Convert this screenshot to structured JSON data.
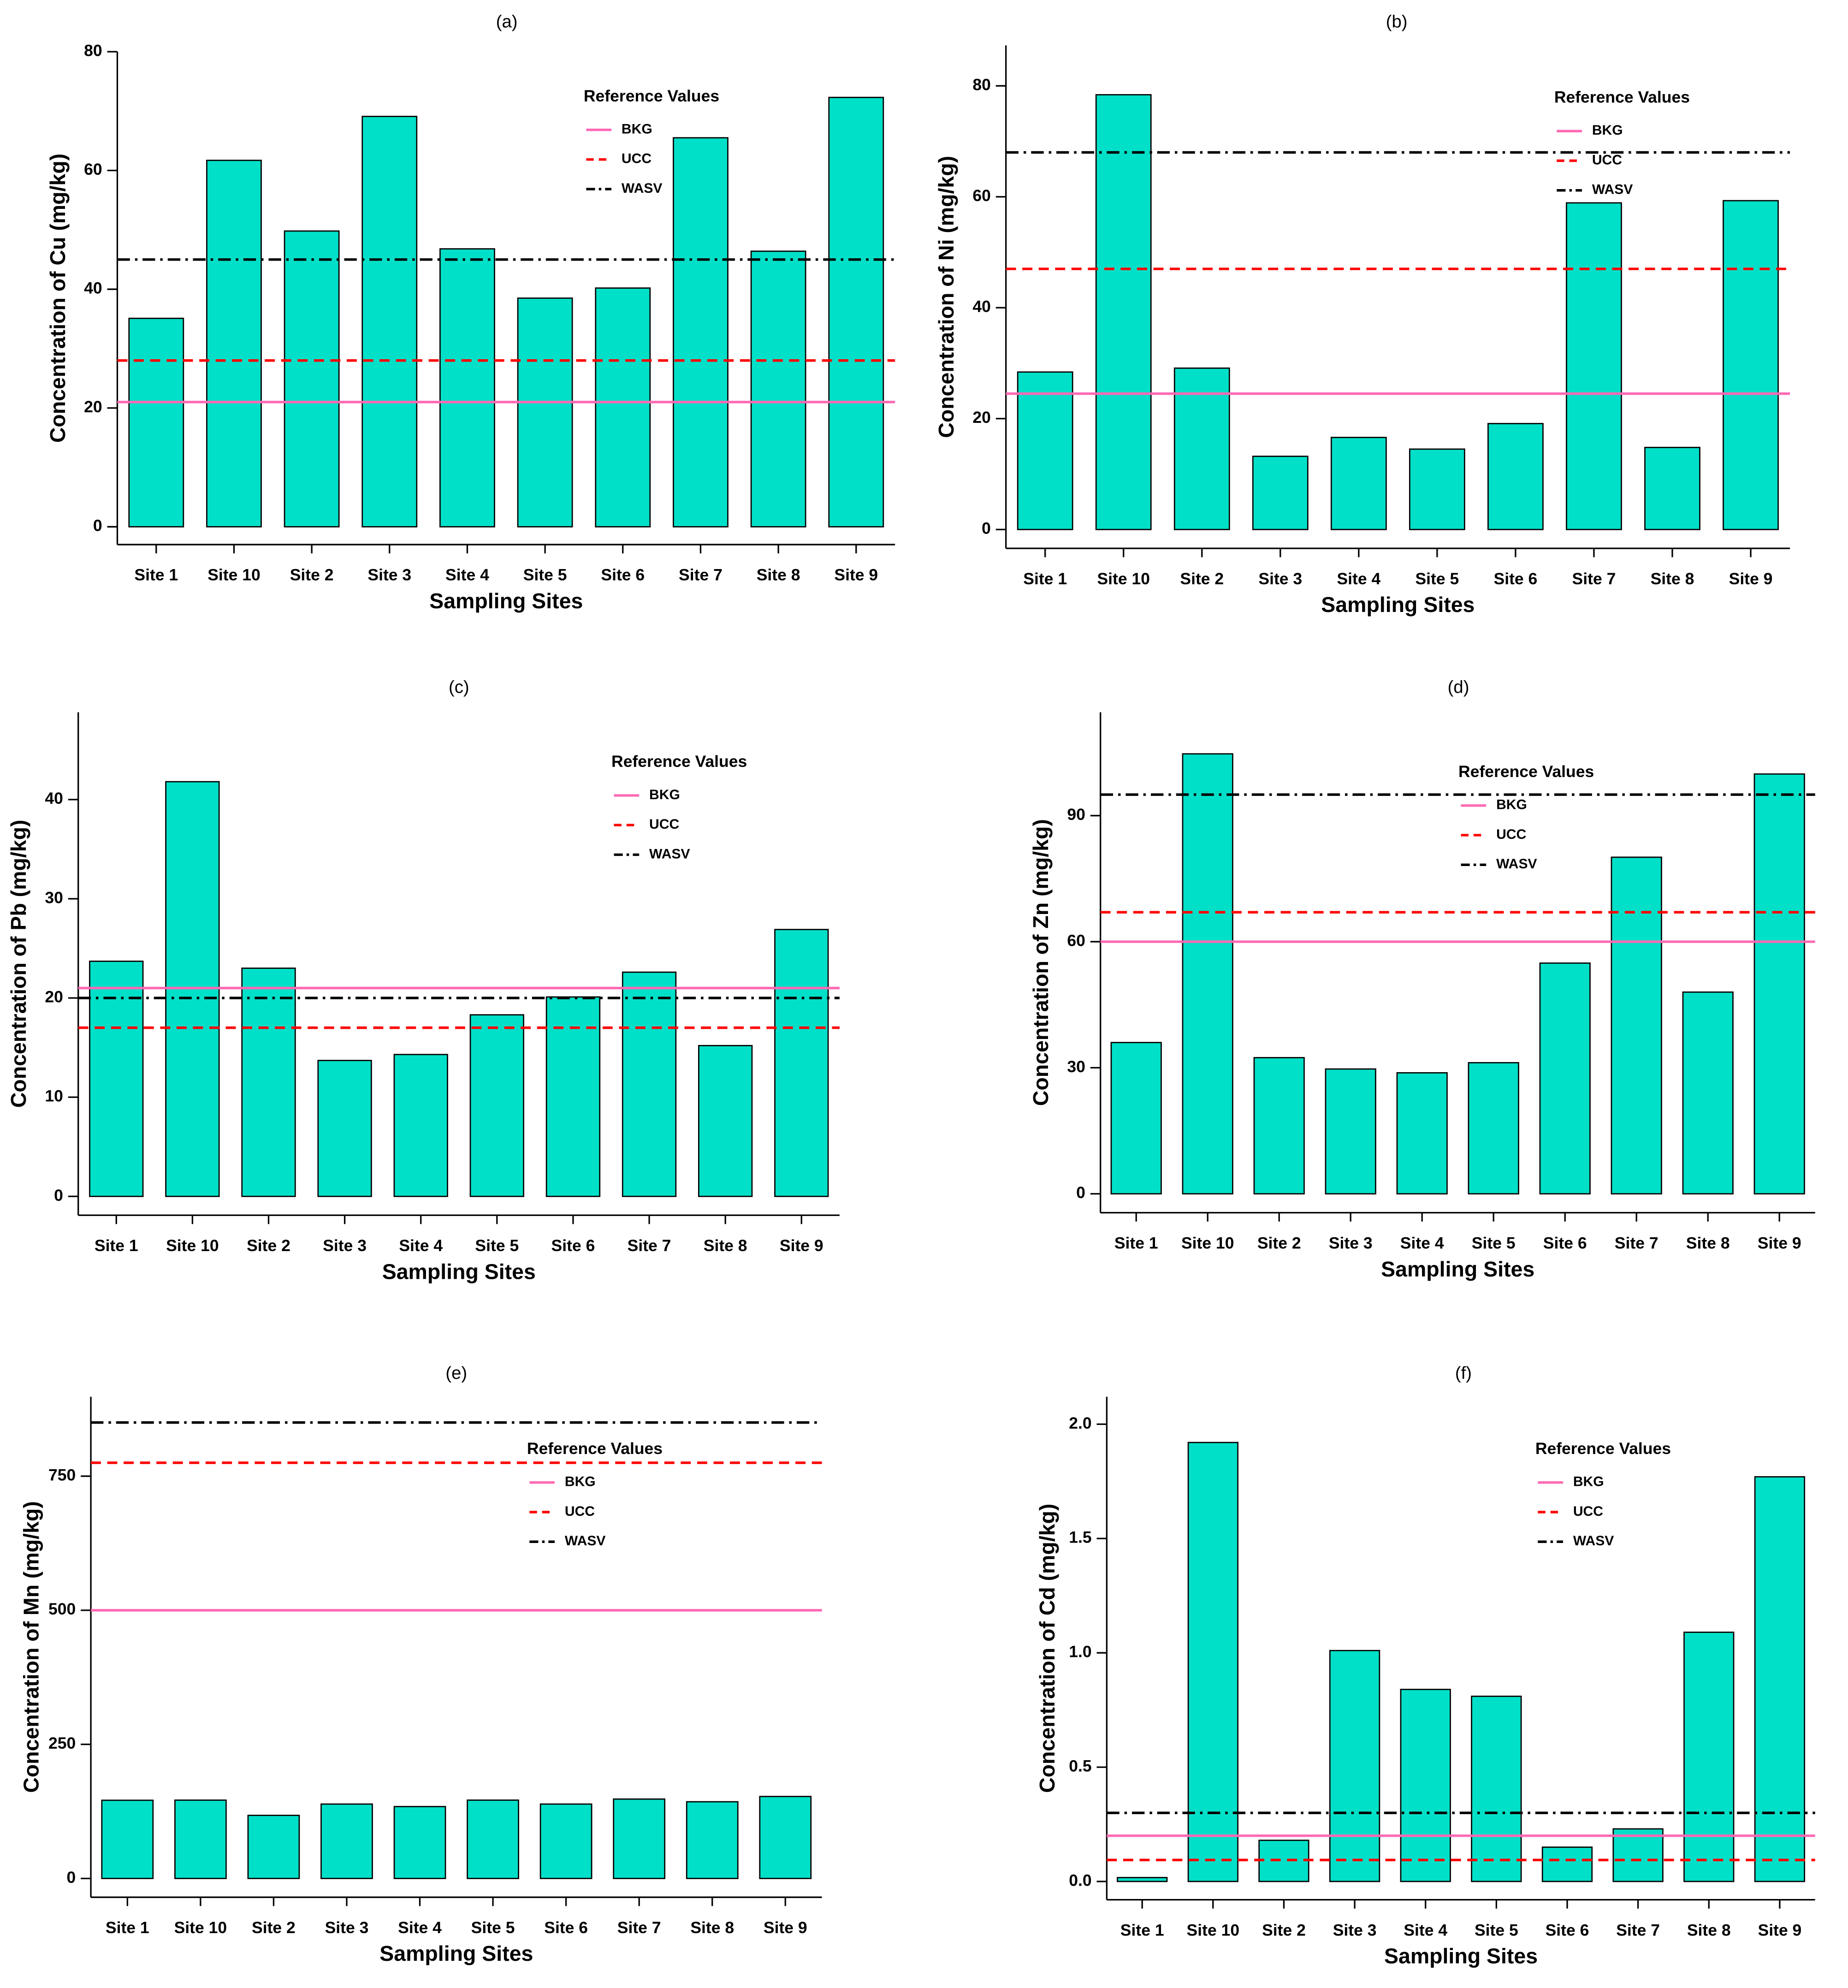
{
  "chart_data": [
    {
      "type": "bar",
      "title": "(a)",
      "xlabel": "Sampling Sites",
      "ylabel": "Concentration of Cu (mg/kg)",
      "categories": [
        "Site 1",
        "Site 10",
        "Site 2",
        "Site 3",
        "Site 4",
        "Site 5",
        "Site 6",
        "Site 7",
        "Site 8",
        "Site 9"
      ],
      "values": [
        35.1,
        61.7,
        49.8,
        69.1,
        46.8,
        38.5,
        40.2,
        65.5,
        46.4,
        72.3
      ],
      "color": "#00e0c8",
      "ylim": [
        -3,
        80
      ],
      "yticks": [
        0,
        20,
        40,
        60,
        80
      ],
      "legend_title": "Reference Values",
      "reference_lines": [
        {
          "name": "BKG",
          "value": 21,
          "color": "#ff69b4",
          "dash": "solid"
        },
        {
          "name": "UCC",
          "value": 28,
          "color": "#ff0000",
          "dash": "dashed"
        },
        {
          "name": "WASV",
          "value": 45,
          "color": "#000000",
          "dash": "dotdash"
        }
      ]
    },
    {
      "type": "bar",
      "title": "(b)",
      "xlabel": "Sampling Sites",
      "ylabel": "Concentration of Ni (mg/kg)",
      "categories": [
        "Site 1",
        "Site 10",
        "Site 2",
        "Site 3",
        "Site 4",
        "Site 5",
        "Site 6",
        "Site 7",
        "Site 8",
        "Site 9"
      ],
      "values": [
        28.4,
        78.4,
        29.1,
        13.2,
        16.6,
        14.5,
        19.1,
        58.9,
        14.8,
        59.3
      ],
      "color": "#00e0c8",
      "ylim": [
        -3.4,
        87.3
      ],
      "yticks": [
        0,
        20,
        40,
        60,
        80
      ],
      "legend_title": "Reference Values",
      "reference_lines": [
        {
          "name": "BKG",
          "value": 24.5,
          "color": "#ff69b4",
          "dash": "solid"
        },
        {
          "name": "UCC",
          "value": 47,
          "color": "#ff0000",
          "dash": "dashed"
        },
        {
          "name": "WASV",
          "value": 68,
          "color": "#000000",
          "dash": "dotdash"
        }
      ]
    },
    {
      "type": "bar",
      "title": "(c)",
      "xlabel": "Sampling Sites",
      "ylabel": "Concentration of Pb (mg/kg)",
      "categories": [
        "Site 1",
        "Site 10",
        "Site 2",
        "Site 3",
        "Site 4",
        "Site 5",
        "Site 6",
        "Site 7",
        "Site 8",
        "Site 9"
      ],
      "values": [
        23.7,
        41.8,
        23.0,
        13.7,
        14.3,
        18.3,
        20.1,
        22.6,
        15.2,
        26.9
      ],
      "color": "#00e0c8",
      "ylim": [
        -1.9,
        48.8
      ],
      "yticks": [
        0,
        10,
        20,
        30,
        40
      ],
      "legend_title": "Reference Values",
      "reference_lines": [
        {
          "name": "BKG",
          "value": 21,
          "color": "#ff69b4",
          "dash": "solid"
        },
        {
          "name": "UCC",
          "value": 17,
          "color": "#ff0000",
          "dash": "dashed"
        },
        {
          "name": "WASV",
          "value": 20,
          "color": "#000000",
          "dash": "dotdash"
        }
      ]
    },
    {
      "type": "bar",
      "title": "(d)",
      "xlabel": "Sampling Sites",
      "ylabel": "Concentration of Zn (mg/kg)",
      "categories": [
        "Site 1",
        "Site 10",
        "Site 2",
        "Site 3",
        "Site 4",
        "Site 5",
        "Site 6",
        "Site 7",
        "Site 8",
        "Site 9"
      ],
      "values": [
        36,
        104.7,
        32.4,
        29.7,
        28.8,
        31.2,
        54.9,
        80.1,
        48,
        99.9
      ],
      "color": "#00e0c8",
      "ylim": [
        -4.5,
        114.6
      ],
      "yticks": [
        0,
        30,
        60,
        90
      ],
      "legend_title": "Reference Values",
      "reference_lines": [
        {
          "name": "BKG",
          "value": 60,
          "color": "#ff69b4",
          "dash": "solid"
        },
        {
          "name": "UCC",
          "value": 67,
          "color": "#ff0000",
          "dash": "dashed"
        },
        {
          "name": "WASV",
          "value": 95,
          "color": "#000000",
          "dash": "dotdash"
        }
      ]
    },
    {
      "type": "bar",
      "title": "(e)",
      "xlabel": "Sampling Sites",
      "ylabel": "Concentration of Mn (mg/kg)",
      "categories": [
        "Site 1",
        "Site 10",
        "Site 2",
        "Site 3",
        "Site 4",
        "Site 5",
        "Site 6",
        "Site 7",
        "Site 8",
        "Site 9"
      ],
      "values": [
        145.8,
        146,
        117.6,
        138.7,
        134,
        146,
        138.7,
        148,
        143,
        152.8
      ],
      "color": "#00e0c8",
      "ylim": [
        -35,
        898
      ],
      "yticks": [
        0,
        250,
        500,
        750
      ],
      "legend_title": "Reference Values",
      "reference_lines": [
        {
          "name": "BKG",
          "value": 500,
          "color": "#ff69b4",
          "dash": "solid"
        },
        {
          "name": "UCC",
          "value": 775,
          "color": "#ff0000",
          "dash": "dashed"
        },
        {
          "name": "WASV",
          "value": 850,
          "color": "#000000",
          "dash": "dotdash"
        }
      ]
    },
    {
      "type": "bar",
      "title": "(f)",
      "xlabel": "Sampling Sites",
      "ylabel": "Concentration of Cd (mg/kg)",
      "categories": [
        "Site 1",
        "Site 10",
        "Site 2",
        "Site 3",
        "Site 4",
        "Site 5",
        "Site 6",
        "Site 7",
        "Site 8",
        "Site 9"
      ],
      "values": [
        0.017,
        1.92,
        0.18,
        1.01,
        0.84,
        0.81,
        0.15,
        0.23,
        1.09,
        1.77
      ],
      "color": "#00e0c8",
      "ylim": [
        -0.08,
        2.12
      ],
      "yticks": [
        {
          "value": 0,
          "label": "0.0"
        },
        0.5,
        {
          "value": 1,
          "label": "1.0"
        },
        1.5,
        {
          "value": 2,
          "label": "2.0"
        }
      ],
      "legend_title": "Reference Values",
      "reference_lines": [
        {
          "name": "BKG",
          "value": 0.2,
          "color": "#ff69b4",
          "dash": "solid"
        },
        {
          "name": "UCC",
          "value": 0.094,
          "color": "#ff0000",
          "dash": "dashed"
        },
        {
          "name": "WASV",
          "value": 0.3,
          "color": "#000000",
          "dash": "dotdash"
        }
      ]
    }
  ]
}
